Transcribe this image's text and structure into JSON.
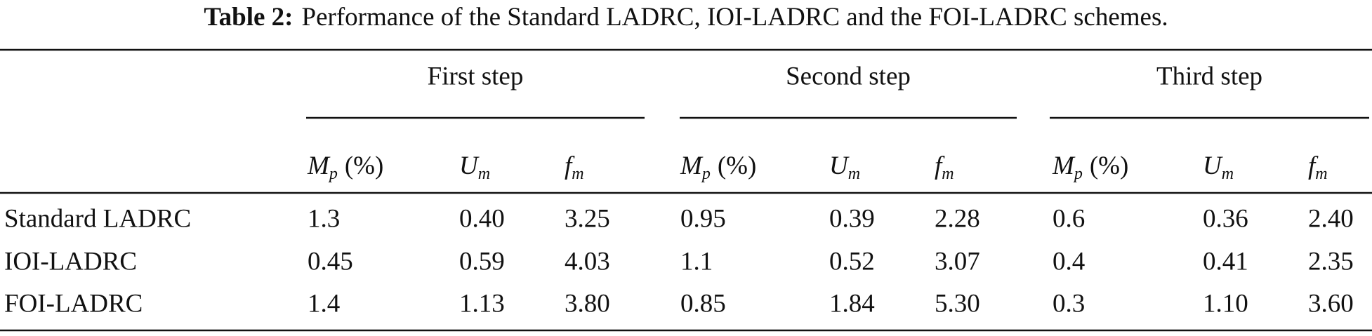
{
  "caption": {
    "label": "Table 2:",
    "text": "Performance of the Standard LADRC, IOI-LADRC and the FOI-LADRC schemes."
  },
  "table": {
    "groups": [
      "First step",
      "Second step",
      "Third step"
    ],
    "subheaders": [
      {
        "symbol": "M",
        "sub": "p",
        "unit": "(%)"
      },
      {
        "symbol": "U",
        "sub": "m"
      },
      {
        "symbol": "f",
        "sub": "m"
      },
      {
        "symbol": "M",
        "sub": "p",
        "unit": "(%)"
      },
      {
        "symbol": "U",
        "sub": "m"
      },
      {
        "symbol": "f",
        "sub": "m"
      },
      {
        "symbol": "M",
        "sub": "p",
        "unit": "(%)"
      },
      {
        "symbol": "U",
        "sub": "m"
      },
      {
        "symbol": "f",
        "sub": "m"
      }
    ],
    "rows": [
      [
        "Standard LADRC",
        "1.3",
        "0.40",
        "3.25",
        "0.95",
        "0.39",
        "2.28",
        "0.6",
        "0.36",
        "2.40"
      ],
      [
        "IOI-LADRC",
        "0.45",
        "0.59",
        "4.03",
        "1.1",
        "0.52",
        "3.07",
        "0.4",
        "0.41",
        "2.35"
      ],
      [
        "FOI-LADRC",
        "1.4",
        "1.13",
        "3.80",
        "0.85",
        "1.84",
        "5.30",
        "0.3",
        "1.10",
        "3.60"
      ]
    ]
  }
}
